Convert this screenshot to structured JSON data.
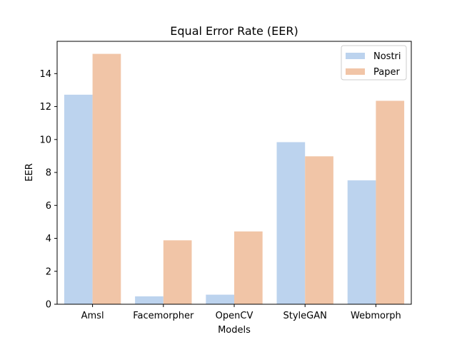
{
  "chart_data": {
    "type": "bar",
    "title": "Equal Error Rate (EER)",
    "xlabel": "Models",
    "ylabel": "EER",
    "categories": [
      "Amsl",
      "Facemorpher",
      "OpenCV",
      "StyleGAN",
      "Webmorph"
    ],
    "series": [
      {
        "name": "Nostri",
        "color": "#bcd3ee",
        "values": [
          12.72,
          0.48,
          0.58,
          9.84,
          7.52
        ]
      },
      {
        "name": "Paper",
        "color": "#f1c5a7",
        "values": [
          15.2,
          3.88,
          4.42,
          8.98,
          12.35
        ]
      }
    ],
    "ylim": [
      0,
      15.96
    ],
    "yticks": [
      0,
      2,
      4,
      6,
      8,
      10,
      12,
      14
    ],
    "grid": false,
    "legend_position": "top-right"
  }
}
